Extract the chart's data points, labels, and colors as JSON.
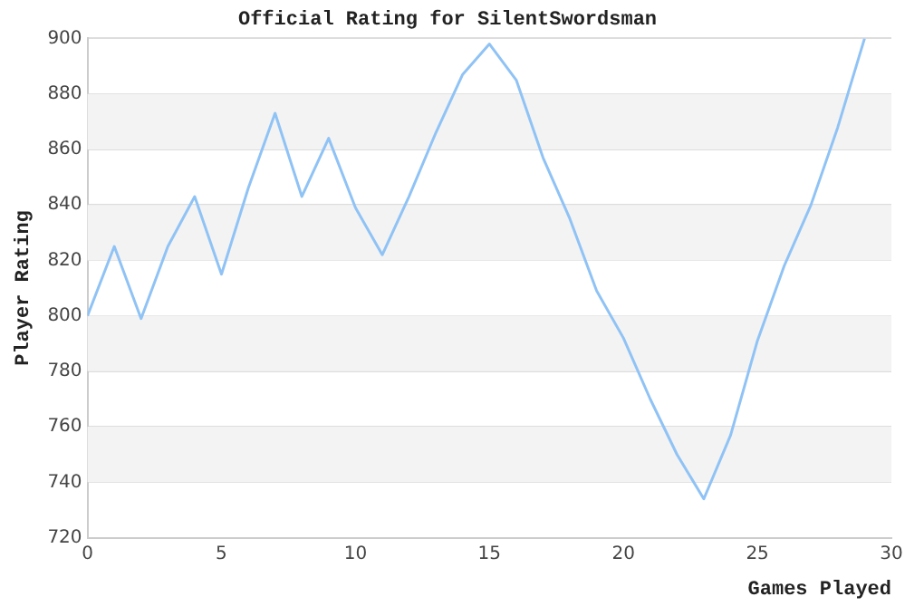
{
  "chart_data": {
    "type": "line",
    "title": "Official Rating for SilentSwordsman",
    "xlabel": "Games Played",
    "ylabel": "Player Rating",
    "x": [
      0,
      1,
      2,
      3,
      4,
      5,
      6,
      7,
      8,
      9,
      10,
      11,
      12,
      13,
      14,
      15,
      16,
      17,
      18,
      19,
      20,
      21,
      22,
      23,
      24,
      25,
      26,
      27,
      28,
      29
    ],
    "series": [
      {
        "color": "#90c3f5",
        "values": [
          800,
          825,
          799,
          825,
          843,
          815,
          846,
          873,
          843,
          864,
          839,
          822,
          843,
          866,
          887,
          898,
          885,
          857,
          835,
          809,
          792,
          770,
          750,
          734,
          757,
          791,
          818,
          840,
          868,
          900
        ]
      }
    ],
    "xlim": [
      0,
      30
    ],
    "xticks": [
      0,
      5,
      10,
      15,
      20,
      25,
      30
    ],
    "ylim": [
      720,
      900
    ],
    "yticks": [
      720,
      740,
      760,
      780,
      800,
      820,
      840,
      860,
      880,
      900
    ],
    "grid": "y",
    "legend": false,
    "marker": "none",
    "line_style": "solid"
  }
}
